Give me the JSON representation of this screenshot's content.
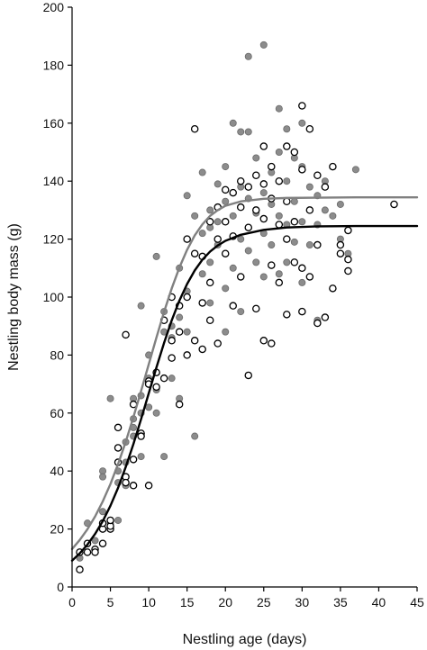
{
  "chart_data": {
    "type": "scatter",
    "xlabel": "Nestling age (days)",
    "ylabel": "Nestling body mass (g)",
    "xlim": [
      0,
      45
    ],
    "ylim": [
      0,
      200
    ],
    "x_ticks": [
      "0",
      "5",
      "10",
      "15",
      "20",
      "25",
      "30",
      "35",
      "40",
      "45"
    ],
    "y_ticks": [
      "0",
      "20",
      "40",
      "60",
      "80",
      "100",
      "120",
      "140",
      "160",
      "180",
      "200"
    ],
    "grid": false,
    "legend": "none",
    "colors": {
      "filled_series": "#8c8c8c",
      "open_series": "#000000",
      "axis": "#000000"
    },
    "series": [
      {
        "style": "filled-gray",
        "curve_color": "#808080",
        "points": [
          [
            1,
            10
          ],
          [
            2,
            22
          ],
          [
            3,
            16
          ],
          [
            4,
            40
          ],
          [
            4,
            38
          ],
          [
            4,
            26
          ],
          [
            5,
            65
          ],
          [
            5,
            22
          ],
          [
            6,
            40
          ],
          [
            6,
            23
          ],
          [
            6,
            36
          ],
          [
            7,
            35
          ],
          [
            7,
            50
          ],
          [
            7,
            43
          ],
          [
            8,
            55
          ],
          [
            8,
            65
          ],
          [
            8,
            58
          ],
          [
            8,
            52
          ],
          [
            9,
            97
          ],
          [
            9,
            60
          ],
          [
            9,
            45
          ],
          [
            9,
            66
          ],
          [
            10,
            80
          ],
          [
            10,
            72
          ],
          [
            10,
            62
          ],
          [
            11,
            68
          ],
          [
            11,
            114
          ],
          [
            11,
            60
          ],
          [
            12,
            92
          ],
          [
            12,
            95
          ],
          [
            12,
            45
          ],
          [
            12,
            88
          ],
          [
            13,
            72
          ],
          [
            13,
            90
          ],
          [
            13,
            86
          ],
          [
            14,
            110
          ],
          [
            14,
            93
          ],
          [
            14,
            65
          ],
          [
            15,
            135
          ],
          [
            15,
            102
          ],
          [
            15,
            88
          ],
          [
            16,
            128
          ],
          [
            16,
            115
          ],
          [
            16,
            52
          ],
          [
            17,
            143
          ],
          [
            17,
            122
          ],
          [
            17,
            108
          ],
          [
            18,
            124
          ],
          [
            18,
            112
          ],
          [
            18,
            98
          ],
          [
            18,
            130
          ],
          [
            19,
            126
          ],
          [
            19,
            139
          ],
          [
            19,
            118
          ],
          [
            20,
            133
          ],
          [
            20,
            103
          ],
          [
            20,
            88
          ],
          [
            20,
            145
          ],
          [
            21,
            160
          ],
          [
            21,
            128
          ],
          [
            21,
            110
          ],
          [
            22,
            157
          ],
          [
            22,
            138
          ],
          [
            22,
            95
          ],
          [
            22,
            120
          ],
          [
            23,
            183
          ],
          [
            23,
            157
          ],
          [
            23,
            134
          ],
          [
            23,
            116
          ],
          [
            24,
            148
          ],
          [
            24,
            129
          ],
          [
            24,
            112
          ],
          [
            25,
            187
          ],
          [
            25,
            136
          ],
          [
            25,
            122
          ],
          [
            25,
            107
          ],
          [
            26,
            143
          ],
          [
            26,
            132
          ],
          [
            26,
            118
          ],
          [
            27,
            165
          ],
          [
            27,
            150
          ],
          [
            27,
            128
          ],
          [
            27,
            108
          ],
          [
            28,
            158
          ],
          [
            28,
            140
          ],
          [
            28,
            125
          ],
          [
            28,
            112
          ],
          [
            29,
            148
          ],
          [
            29,
            133
          ],
          [
            29,
            119
          ],
          [
            30,
            160
          ],
          [
            30,
            145
          ],
          [
            30,
            126
          ],
          [
            30,
            105
          ],
          [
            31,
            138
          ],
          [
            31,
            118
          ],
          [
            32,
            135
          ],
          [
            32,
            125
          ],
          [
            32,
            92
          ],
          [
            33,
            140
          ],
          [
            33,
            130
          ],
          [
            34,
            128
          ],
          [
            35,
            120
          ],
          [
            35,
            132
          ],
          [
            36,
            115
          ],
          [
            37,
            144
          ]
        ],
        "curve": [
          [
            0,
            13.1
          ],
          [
            1,
            16.2
          ],
          [
            2,
            19.9
          ],
          [
            3,
            24.3
          ],
          [
            4,
            29.5
          ],
          [
            5,
            35.5
          ],
          [
            6,
            42.4
          ],
          [
            7,
            50.1
          ],
          [
            8,
            58.6
          ],
          [
            9,
            67.6
          ],
          [
            10,
            76.8
          ],
          [
            11,
            86
          ],
          [
            12,
            94.9
          ],
          [
            13,
            103
          ],
          [
            14,
            110.2
          ],
          [
            15,
            116.3
          ],
          [
            16,
            121.3
          ],
          [
            17,
            125.1
          ],
          [
            18,
            128
          ],
          [
            19,
            130
          ],
          [
            20,
            131.5
          ],
          [
            22,
            133
          ],
          [
            25,
            133.9
          ],
          [
            28,
            134.2
          ],
          [
            32,
            134.3
          ],
          [
            37,
            134.4
          ],
          [
            45,
            134.4
          ]
        ]
      },
      {
        "style": "open-circle",
        "curve_color": "#000000",
        "points": [
          [
            1,
            6
          ],
          [
            1,
            12
          ],
          [
            2,
            12
          ],
          [
            2,
            15
          ],
          [
            3,
            13
          ],
          [
            3,
            12
          ],
          [
            4,
            15
          ],
          [
            4,
            20
          ],
          [
            4,
            22
          ],
          [
            5,
            20
          ],
          [
            5,
            21
          ],
          [
            5,
            23
          ],
          [
            6,
            55
          ],
          [
            6,
            48
          ],
          [
            6,
            43
          ],
          [
            7,
            38
          ],
          [
            7,
            87
          ],
          [
            7,
            36
          ],
          [
            8,
            35
          ],
          [
            8,
            44
          ],
          [
            8,
            63
          ],
          [
            9,
            53
          ],
          [
            9,
            52
          ],
          [
            10,
            35
          ],
          [
            10,
            71
          ],
          [
            10,
            70
          ],
          [
            11,
            69
          ],
          [
            11,
            74
          ],
          [
            12,
            92
          ],
          [
            12,
            72
          ],
          [
            13,
            85
          ],
          [
            13,
            79
          ],
          [
            13,
            100
          ],
          [
            14,
            97
          ],
          [
            14,
            63
          ],
          [
            14,
            88
          ],
          [
            15,
            120
          ],
          [
            15,
            100
          ],
          [
            15,
            80
          ],
          [
            16,
            158
          ],
          [
            16,
            115
          ],
          [
            16,
            85
          ],
          [
            17,
            114
          ],
          [
            17,
            98
          ],
          [
            17,
            82
          ],
          [
            18,
            126
          ],
          [
            18,
            105
          ],
          [
            18,
            92
          ],
          [
            19,
            131
          ],
          [
            19,
            120
          ],
          [
            19,
            84
          ],
          [
            20,
            137
          ],
          [
            20,
            115
          ],
          [
            20,
            126
          ],
          [
            21,
            136
          ],
          [
            21,
            121
          ],
          [
            21,
            97
          ],
          [
            22,
            140
          ],
          [
            22,
            131
          ],
          [
            22,
            107
          ],
          [
            23,
            138
          ],
          [
            23,
            124
          ],
          [
            23,
            73
          ],
          [
            24,
            142
          ],
          [
            24,
            130
          ],
          [
            24,
            96
          ],
          [
            25,
            152
          ],
          [
            25,
            139
          ],
          [
            25,
            127
          ],
          [
            25,
            85
          ],
          [
            26,
            145
          ],
          [
            26,
            134
          ],
          [
            26,
            111
          ],
          [
            26,
            84
          ],
          [
            27,
            140
          ],
          [
            27,
            125
          ],
          [
            27,
            105
          ],
          [
            28,
            152
          ],
          [
            28,
            133
          ],
          [
            28,
            120
          ],
          [
            28,
            94
          ],
          [
            29,
            150
          ],
          [
            29,
            126
          ],
          [
            29,
            112
          ],
          [
            30,
            166
          ],
          [
            30,
            144
          ],
          [
            30,
            110
          ],
          [
            30,
            95
          ],
          [
            31,
            158
          ],
          [
            31,
            130
          ],
          [
            31,
            107
          ],
          [
            32,
            142
          ],
          [
            32,
            118
          ],
          [
            32,
            91
          ],
          [
            33,
            138
          ],
          [
            33,
            93
          ],
          [
            34,
            145
          ],
          [
            34,
            103
          ],
          [
            35,
            118
          ],
          [
            35,
            115
          ],
          [
            36,
            123
          ],
          [
            36,
            113
          ],
          [
            36,
            109
          ],
          [
            42,
            132
          ]
        ],
        "curve": [
          [
            0,
            9.1
          ],
          [
            1,
            11.6
          ],
          [
            2,
            14.6
          ],
          [
            3,
            18.3
          ],
          [
            4,
            22.7
          ],
          [
            5,
            28
          ],
          [
            6,
            34.2
          ],
          [
            7,
            41.4
          ],
          [
            8,
            49.3
          ],
          [
            9,
            57.9
          ],
          [
            10,
            66.8
          ],
          [
            11,
            75.7
          ],
          [
            12,
            84.2
          ],
          [
            13,
            92
          ],
          [
            14,
            98.8
          ],
          [
            15,
            104.5
          ],
          [
            16,
            109.2
          ],
          [
            17,
            112.9
          ],
          [
            18,
            115.7
          ],
          [
            19,
            117.8
          ],
          [
            20,
            119.4
          ],
          [
            22,
            121.5
          ],
          [
            25,
            123.2
          ],
          [
            28,
            124
          ],
          [
            32,
            124.4
          ],
          [
            37,
            124.5
          ],
          [
            45,
            124.5
          ]
        ]
      }
    ]
  }
}
